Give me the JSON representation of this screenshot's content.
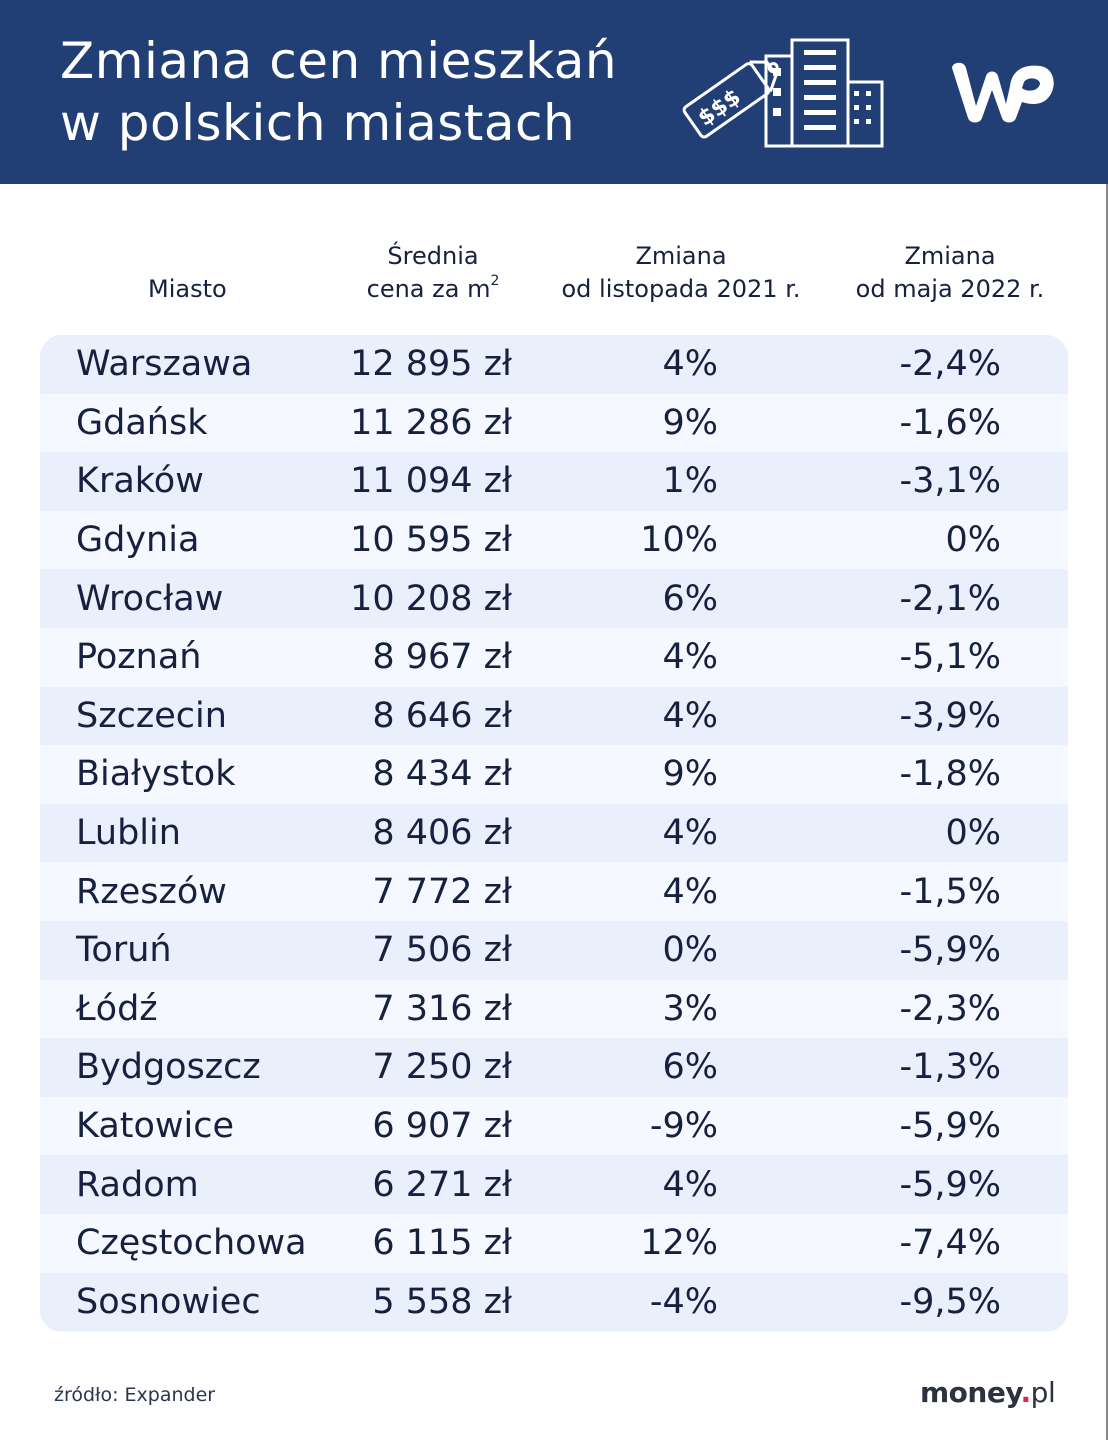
{
  "header": {
    "title_line1": "Zmiana cen mieszkań",
    "title_line2": "w polskich miastach",
    "illustration": "price-tag-buildings-icon",
    "logo": "wp-logo",
    "background_color": "#223f75"
  },
  "columns": {
    "city": "Miasto",
    "price_line1": "Średnia",
    "price_line2": "cena za m",
    "price_sup": "2",
    "change1_line1": "Zmiana",
    "change1_line2": "od listopada 2021 r.",
    "change2_line1": "Zmiana",
    "change2_line2": "od maja 2022 r."
  },
  "rows": [
    {
      "city": "Warszawa",
      "price": "12 895 zł",
      "change_nov2021": "4%",
      "change_may2022": "-2,4%"
    },
    {
      "city": "Gdańsk",
      "price": "11 286 zł",
      "change_nov2021": "9%",
      "change_may2022": "-1,6%"
    },
    {
      "city": "Kraków",
      "price": "11 094 zł",
      "change_nov2021": "1%",
      "change_may2022": "-3,1%"
    },
    {
      "city": "Gdynia",
      "price": "10 595 zł",
      "change_nov2021": "10%",
      "change_may2022": "0%"
    },
    {
      "city": "Wrocław",
      "price": "10 208 zł",
      "change_nov2021": "6%",
      "change_may2022": "-2,1%"
    },
    {
      "city": "Poznań",
      "price": "8 967 zł",
      "change_nov2021": "4%",
      "change_may2022": "-5,1%"
    },
    {
      "city": "Szczecin",
      "price": "8 646 zł",
      "change_nov2021": "4%",
      "change_may2022": "-3,9%"
    },
    {
      "city": "Białystok",
      "price": "8 434 zł",
      "change_nov2021": "9%",
      "change_may2022": "-1,8%"
    },
    {
      "city": "Lublin",
      "price": "8 406 zł",
      "change_nov2021": "4%",
      "change_may2022": "0%"
    },
    {
      "city": "Rzeszów",
      "price": "7 772 zł",
      "change_nov2021": "4%",
      "change_may2022": "-1,5%"
    },
    {
      "city": "Toruń",
      "price": "7 506 zł",
      "change_nov2021": "0%",
      "change_may2022": "-5,9%"
    },
    {
      "city": "Łódź",
      "price": "7 316 zł",
      "change_nov2021": "3%",
      "change_may2022": "-2,3%"
    },
    {
      "city": "Bydgoszcz",
      "price": "7 250 zł",
      "change_nov2021": "6%",
      "change_may2022": "-1,3%"
    },
    {
      "city": "Katowice",
      "price": "6 907 zł",
      "change_nov2021": "-9%",
      "change_may2022": "-5,9%"
    },
    {
      "city": "Radom",
      "price": "6 271 zł",
      "change_nov2021": "4%",
      "change_may2022": "-5,9%"
    },
    {
      "city": "Częstochowa",
      "price": "6 115 zł",
      "change_nov2021": "12%",
      "change_may2022": "-7,4%"
    },
    {
      "city": "Sosnowiec",
      "price": "5 558 zł",
      "change_nov2021": "-4%",
      "change_may2022": "-9,5%"
    }
  ],
  "footer": {
    "source": "źródło: Expander",
    "brand_main": "money",
    "brand_dot": ".",
    "brand_tld": "pl"
  },
  "chart_data": {
    "type": "table",
    "title": "Zmiana cen mieszkań w polskich miastach",
    "columns": [
      "Miasto",
      "Średnia cena za m²",
      "Zmiana od listopada 2021 r.",
      "Zmiana od maja 2022 r."
    ],
    "categories": [
      "Warszawa",
      "Gdańsk",
      "Kraków",
      "Gdynia",
      "Wrocław",
      "Poznań",
      "Szczecin",
      "Białystok",
      "Lublin",
      "Rzeszów",
      "Toruń",
      "Łódź",
      "Bydgoszcz",
      "Katowice",
      "Radom",
      "Częstochowa",
      "Sosnowiec"
    ],
    "series": [
      {
        "name": "Średnia cena za m² (zł)",
        "values": [
          12895,
          11286,
          11094,
          10595,
          10208,
          8967,
          8646,
          8434,
          8406,
          7772,
          7506,
          7316,
          7250,
          6907,
          6271,
          6115,
          5558
        ]
      },
      {
        "name": "Zmiana od listopada 2021 r. (%)",
        "values": [
          4,
          9,
          1,
          10,
          6,
          4,
          4,
          9,
          4,
          4,
          0,
          3,
          6,
          -9,
          4,
          12,
          -4
        ]
      },
      {
        "name": "Zmiana od maja 2022 r. (%)",
        "values": [
          -2.4,
          -1.6,
          -3.1,
          0,
          -2.1,
          -5.1,
          -3.9,
          -1.8,
          0,
          -1.5,
          -5.9,
          -2.3,
          -1.3,
          -5.9,
          -5.9,
          -7.4,
          -9.5
        ]
      }
    ],
    "source": "Expander"
  }
}
